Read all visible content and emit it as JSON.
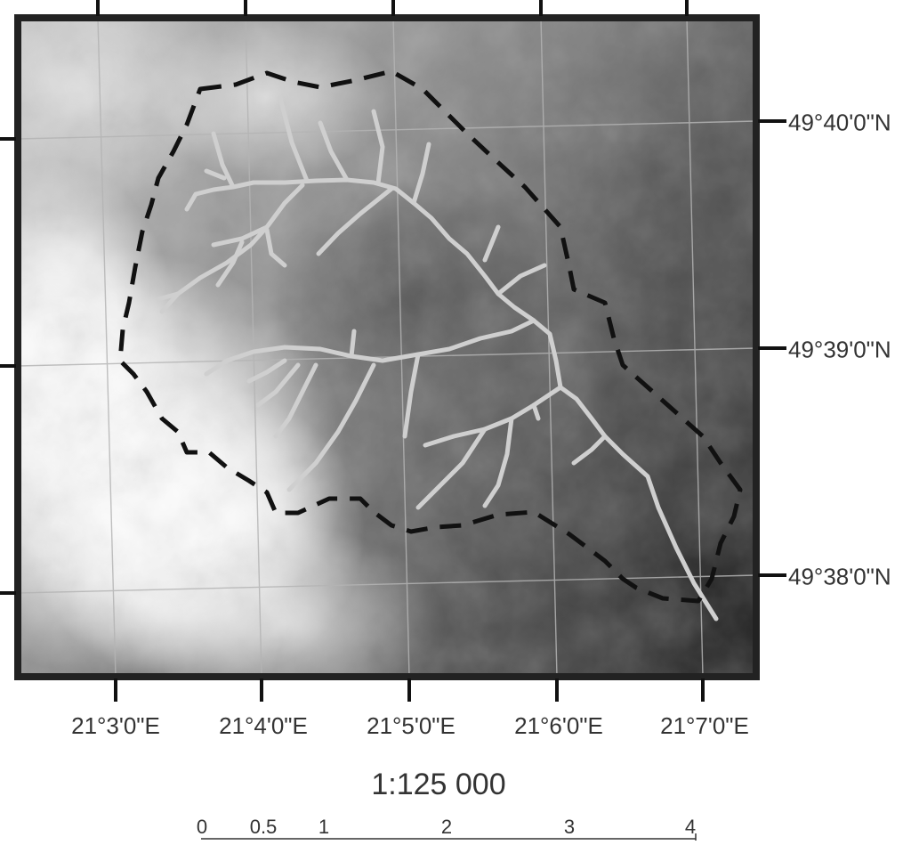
{
  "map": {
    "longitude_labels": [
      "21°3'0\"E",
      "21°4'0\"E",
      "21°5'0\"E",
      "21°6'0\"E",
      "21°7'0\"E"
    ],
    "latitude_labels": [
      "49°40'0\"N",
      "49°39'0\"N",
      "49°38'0\"N"
    ],
    "scale_ratio": "1:125 000",
    "scale_bar_ticks": [
      "0",
      "0.5",
      "1",
      "2",
      "3",
      "4"
    ],
    "layers": {
      "elevation": "grayscale shaded relief, high = white, low = dark",
      "catchment_boundary": "black dashed line",
      "stream_network": "light gray lines"
    },
    "colors": {
      "boundary": "#111111",
      "streams": "#cfcfcf",
      "frame": "#222222"
    }
  }
}
